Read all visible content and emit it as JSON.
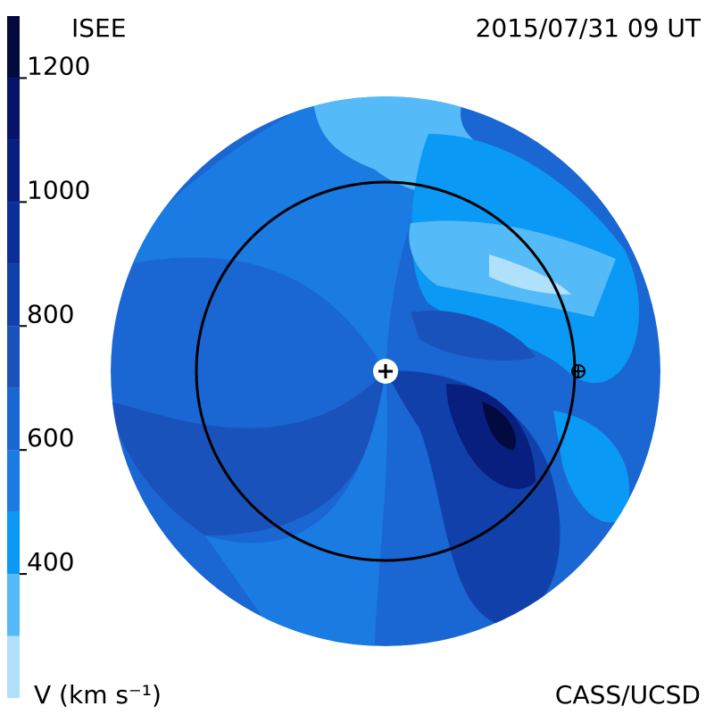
{
  "header": {
    "source": "ISEE",
    "timestamp": "2015/07/31 09 UT"
  },
  "colorbar": {
    "label": "V (km s⁻¹)",
    "range": [
      200,
      1300
    ],
    "bounds": [
      200,
      300,
      400,
      500,
      600,
      700,
      800,
      900,
      1000,
      1100,
      1200,
      1300
    ],
    "colors": [
      "#b0e0fa",
      "#55baf8",
      "#0a99f5",
      "#1a7be2",
      "#1a66d2",
      "#1a52bc",
      "#1240aa",
      "#0c2e98",
      "#081f80",
      "#05146a",
      "#020a40"
    ],
    "ticks": [
      400,
      600,
      800,
      1000,
      1200
    ]
  },
  "credit": "CASS/UCSD"
}
